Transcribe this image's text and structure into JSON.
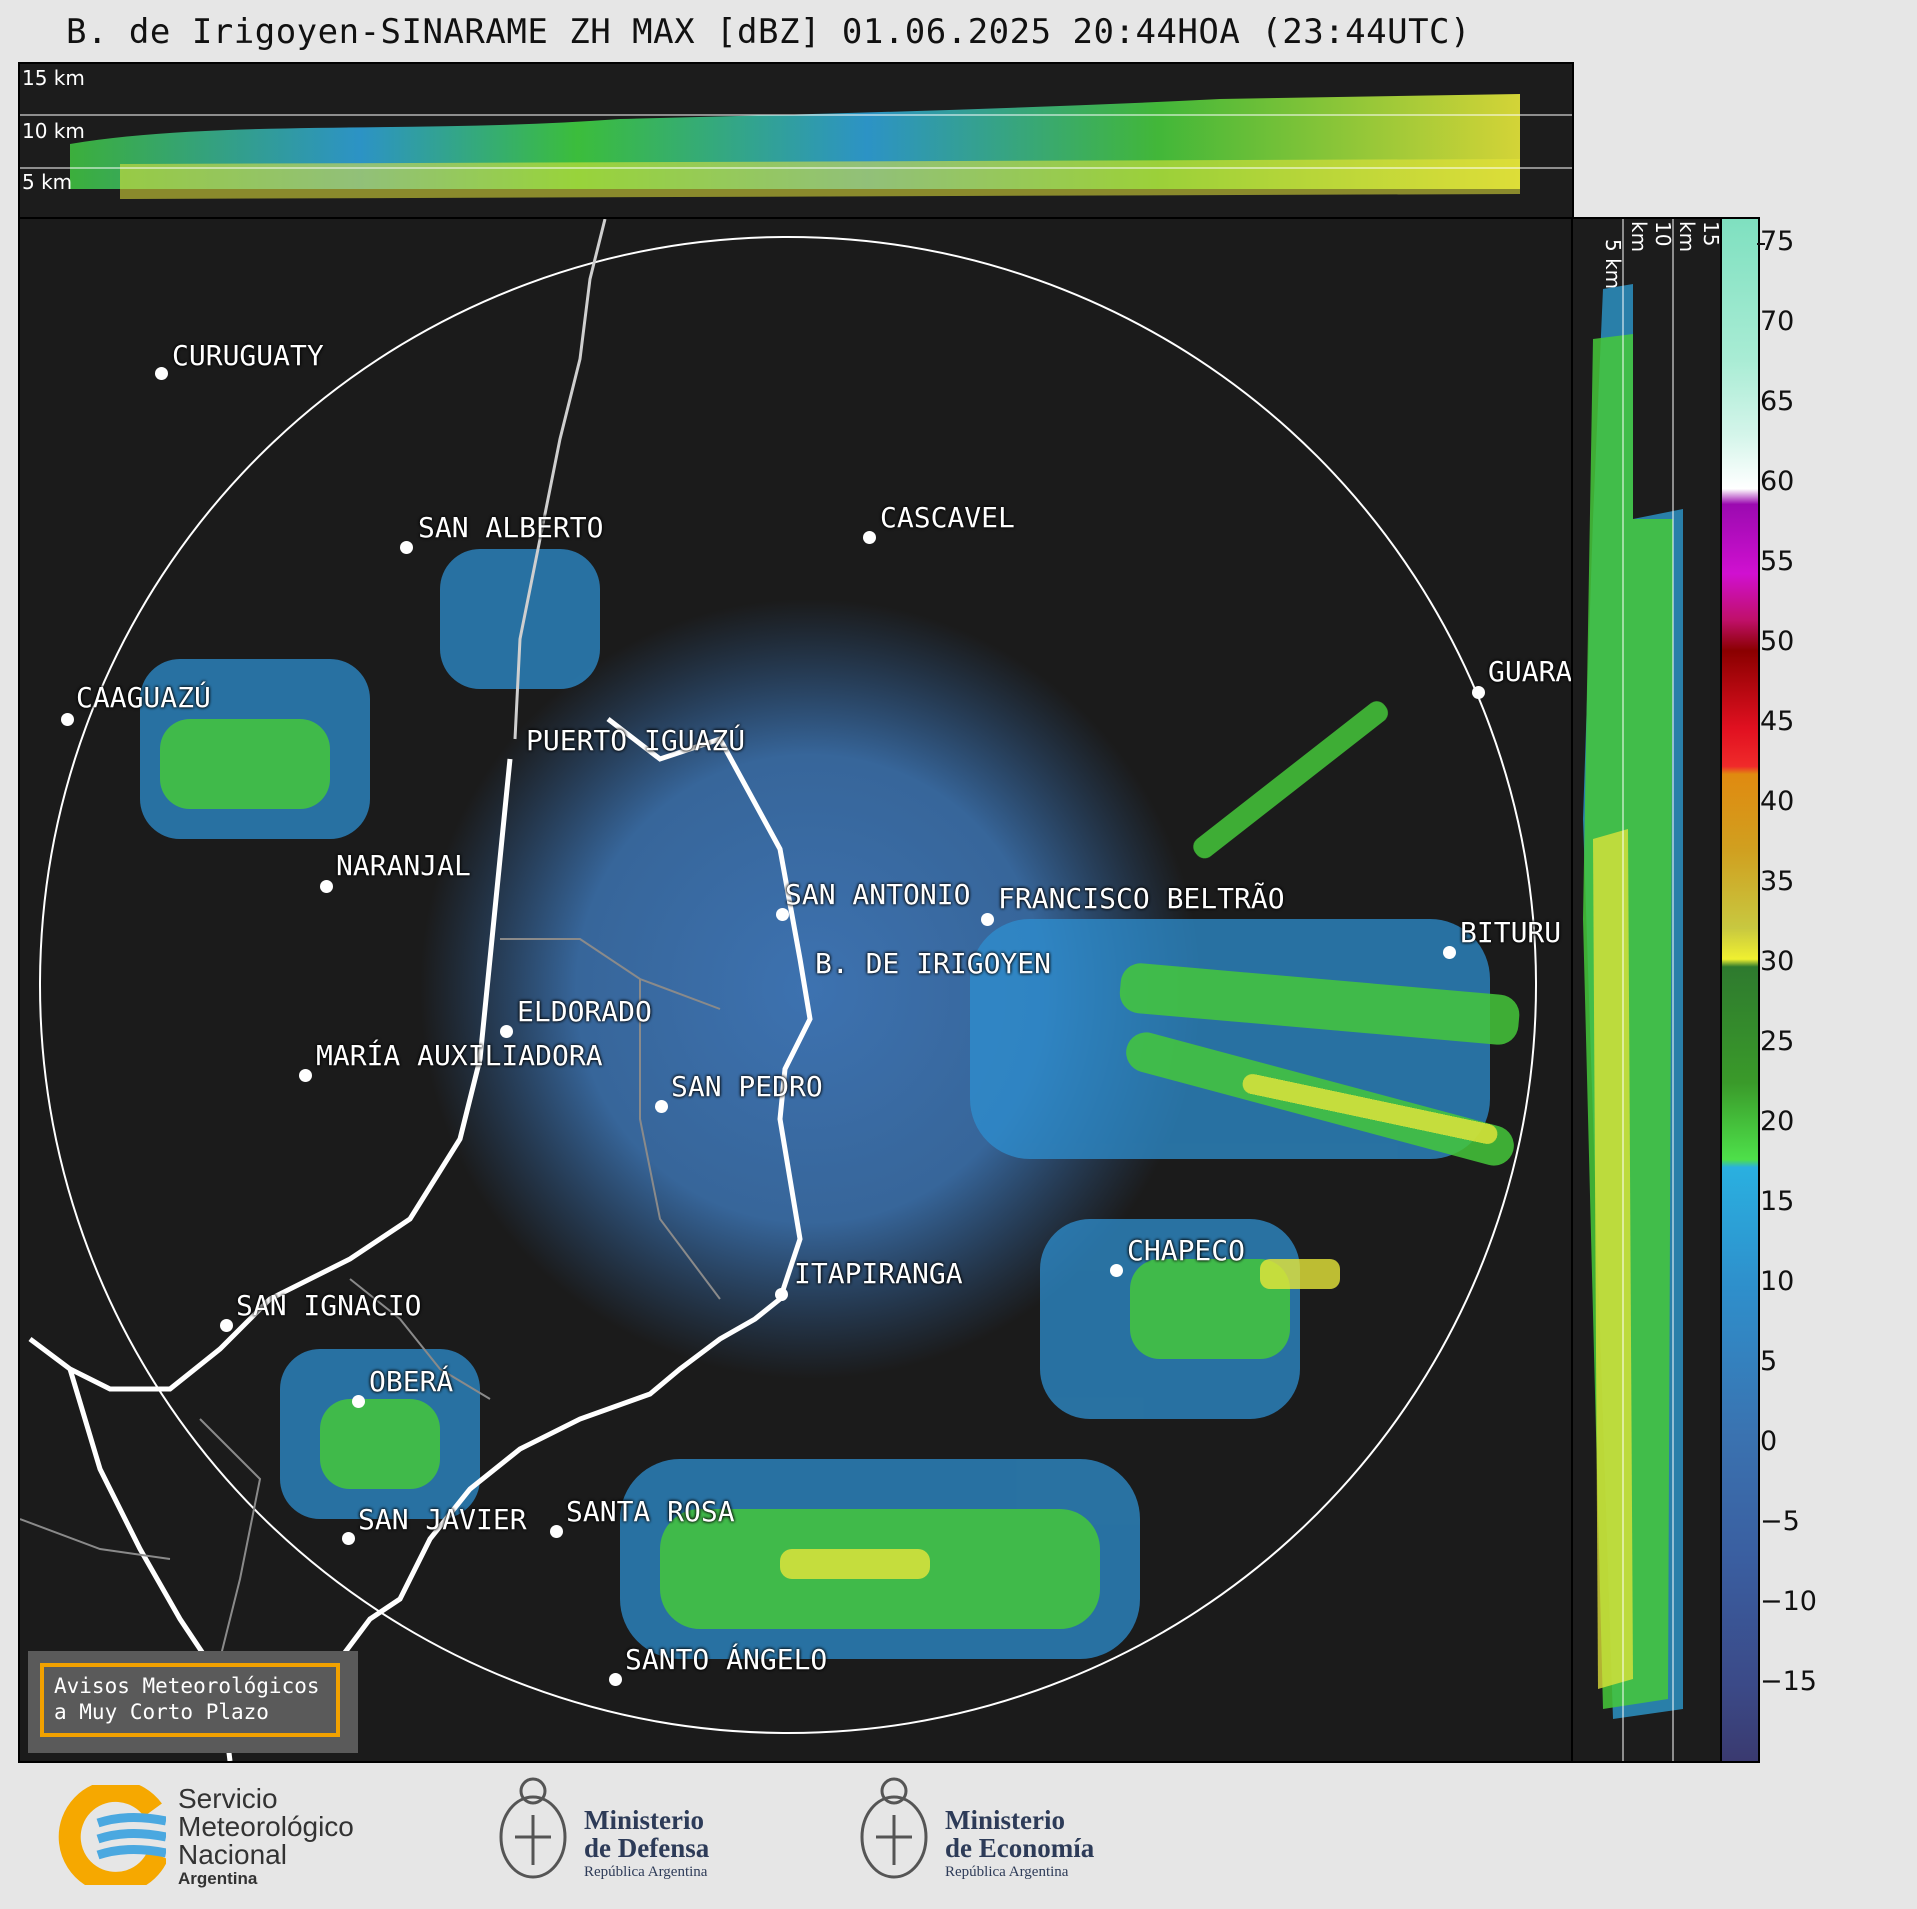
{
  "title": "B. de Irigoyen-SINARAME ZH MAX [dBZ] 01.06.2025 20:44HOA (23:44UTC)",
  "top_panel": {
    "labels": [
      "15 km",
      "10 km",
      "5 km"
    ]
  },
  "side_panel": {
    "labels": [
      "5 km",
      "10 km",
      "15 km"
    ]
  },
  "colorbar": {
    "ticks": [
      "75",
      "70",
      "65",
      "60",
      "55",
      "50",
      "45",
      "40",
      "35",
      "30",
      "25",
      "20",
      "15",
      "10",
      "5",
      "0",
      "−5",
      "−10",
      "−15"
    ]
  },
  "cities": [
    {
      "name": "CURUGUATY"
    },
    {
      "name": "SAN ALBERTO"
    },
    {
      "name": "CASCAVEL"
    },
    {
      "name": "CAAGUAZÚ"
    },
    {
      "name": "GUARA"
    },
    {
      "name": "PUERTO IGUAZÚ"
    },
    {
      "name": "NARANJAL"
    },
    {
      "name": "SAN ANTONIO"
    },
    {
      "name": "FRANCISCO BELTRÃO"
    },
    {
      "name": "BITURU"
    },
    {
      "name": "B. DE IRIGOYEN"
    },
    {
      "name": "ELDORADO"
    },
    {
      "name": "MARÍA AUXILIADORA"
    },
    {
      "name": "SAN PEDRO"
    },
    {
      "name": "CHAPECO"
    },
    {
      "name": "ITAPIRANGA"
    },
    {
      "name": "SAN IGNACIO"
    },
    {
      "name": "OBERÁ"
    },
    {
      "name": "SAN JAVIER"
    },
    {
      "name": "SANTA ROSA"
    },
    {
      "name": "SANTO ÁNGELO"
    }
  ],
  "warning": {
    "line1": "Avisos Meteorológicos",
    "line2": "a Muy Corto Plazo"
  },
  "logos": {
    "smn": {
      "line1": "Servicio",
      "line2": "Meteorológico",
      "line3": "Nacional",
      "line4": "Argentina"
    },
    "defensa": {
      "line1": "Ministerio",
      "line2": "de Defensa",
      "line3": "República Argentina"
    },
    "economia": {
      "line1": "Ministerio",
      "line2": "de Economía",
      "line3": "República Argentina"
    }
  },
  "colors": {
    "ring": "#ffffff",
    "border_country": "#ffffff",
    "accent": "#f2a100"
  }
}
